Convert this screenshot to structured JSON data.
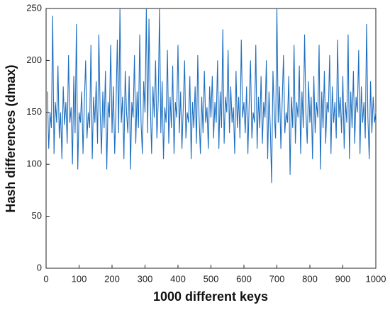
{
  "chart_data": {
    "type": "line",
    "xlabel": "1000 different keys",
    "ylabel": "Hash differences (dmax)",
    "color": "#1f6fc0",
    "xlim": [
      0,
      1000
    ],
    "xticks": [
      0,
      100,
      200,
      300,
      400,
      500,
      600,
      700,
      800,
      900,
      1000
    ],
    "ylim": [
      0,
      250
    ],
    "yticks": [
      0,
      50,
      100,
      150,
      200,
      250
    ],
    "x": [
      4,
      8,
      12,
      16,
      20,
      24,
      28,
      32,
      36,
      40,
      44,
      48,
      52,
      56,
      60,
      64,
      68,
      72,
      76,
      80,
      84,
      88,
      92,
      96,
      100,
      104,
      108,
      112,
      116,
      120,
      124,
      128,
      132,
      136,
      140,
      144,
      148,
      152,
      156,
      160,
      164,
      168,
      172,
      176,
      180,
      184,
      188,
      192,
      196,
      200,
      204,
      208,
      212,
      216,
      220,
      224,
      228,
      232,
      236,
      240,
      244,
      248,
      252,
      256,
      260,
      264,
      268,
      272,
      276,
      280,
      284,
      288,
      292,
      296,
      300,
      304,
      308,
      312,
      316,
      320,
      324,
      328,
      332,
      336,
      340,
      344,
      348,
      352,
      356,
      360,
      364,
      368,
      372,
      376,
      380,
      384,
      388,
      392,
      396,
      400,
      404,
      408,
      412,
      416,
      420,
      424,
      428,
      432,
      436,
      440,
      444,
      448,
      452,
      456,
      460,
      464,
      468,
      472,
      476,
      480,
      484,
      488,
      492,
      496,
      500,
      504,
      508,
      512,
      516,
      520,
      524,
      528,
      532,
      536,
      540,
      544,
      548,
      552,
      556,
      560,
      564,
      568,
      572,
      576,
      580,
      584,
      588,
      592,
      596,
      600,
      604,
      608,
      612,
      616,
      620,
      624,
      628,
      632,
      636,
      640,
      644,
      648,
      652,
      656,
      660,
      664,
      668,
      672,
      676,
      680,
      684,
      688,
      692,
      696,
      700,
      704,
      708,
      712,
      716,
      720,
      724,
      728,
      732,
      736,
      740,
      744,
      748,
      752,
      756,
      760,
      764,
      768,
      772,
      776,
      780,
      784,
      788,
      792,
      796,
      800,
      804,
      808,
      812,
      816,
      820,
      824,
      828,
      832,
      836,
      840,
      844,
      848,
      852,
      856,
      860,
      864,
      868,
      872,
      876,
      880,
      884,
      888,
      892,
      896,
      900,
      904,
      908,
      912,
      916,
      920,
      924,
      928,
      932,
      936,
      940,
      944,
      948,
      952,
      956,
      960,
      964,
      968,
      972,
      976,
      980,
      984,
      988,
      992,
      996,
      1000
    ],
    "values": [
      170,
      115,
      150,
      135,
      243,
      110,
      160,
      140,
      195,
      125,
      150,
      105,
      175,
      138,
      160,
      120,
      205,
      140,
      155,
      100,
      185,
      130,
      235,
      95,
      150,
      140,
      170,
      110,
      160,
      200,
      125,
      150,
      135,
      215,
      105,
      165,
      140,
      180,
      120,
      225,
      150,
      110,
      170,
      135,
      190,
      95,
      160,
      145,
      215,
      130,
      175,
      110,
      155,
      220,
      130,
      250,
      140,
      165,
      105,
      190,
      150,
      130,
      185,
      95,
      160,
      145,
      205,
      120,
      170,
      135,
      225,
      140,
      110,
      180,
      150,
      250,
      130,
      240,
      160,
      110,
      175,
      145,
      200,
      125,
      160,
      250,
      130,
      180,
      105,
      155,
      140,
      210,
      120,
      165,
      135,
      195,
      110,
      160,
      145,
      215,
      130,
      170,
      115,
      155,
      200,
      125,
      150,
      140,
      185,
      105,
      160,
      135,
      175,
      120,
      205,
      145,
      110,
      165,
      130,
      190,
      140,
      155,
      115,
      175,
      145,
      185,
      125,
      160,
      140,
      200,
      115,
      170,
      135,
      230,
      120,
      165,
      150,
      210,
      130,
      175,
      140,
      155,
      110,
      190,
      135,
      165,
      125,
      220,
      145,
      160,
      130,
      175,
      110,
      160,
      200,
      125,
      150,
      140,
      215,
      115,
      165,
      135,
      185,
      120,
      160,
      145,
      200,
      105,
      170,
      135,
      82,
      190,
      150,
      125,
      250,
      140,
      175,
      115,
      160,
      205,
      130,
      150,
      140,
      185,
      90,
      165,
      135,
      215,
      120,
      160,
      145,
      195,
      110,
      170,
      135,
      225,
      150,
      120,
      180,
      140,
      165,
      105,
      185,
      130,
      160,
      145,
      215,
      95,
      170,
      135,
      190,
      120,
      160,
      150,
      205,
      110,
      175,
      140,
      160,
      125,
      220,
      145,
      165,
      130,
      185,
      115,
      160,
      140,
      225,
      105,
      170,
      135,
      190,
      120,
      165,
      150,
      210,
      110,
      175,
      140,
      160,
      125,
      235,
      145,
      105,
      180,
      130,
      165,
      140,
      150
    ]
  }
}
